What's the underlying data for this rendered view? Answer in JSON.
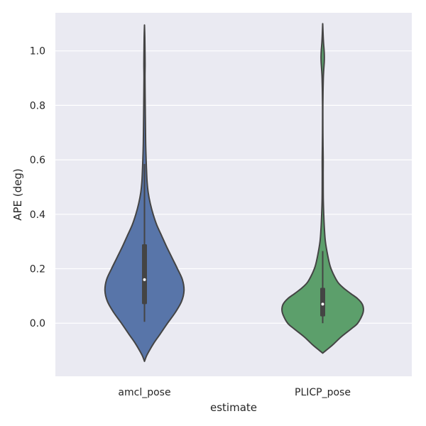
{
  "chart_data": {
    "type": "violin",
    "xlabel": "estimate",
    "ylabel": "APE (deg)",
    "categories": [
      "amcl_pose",
      "PLICP_pose"
    ],
    "ylim": [
      -0.195,
      1.14
    ],
    "yticks": [
      0.0,
      0.2,
      0.4,
      0.6,
      0.8,
      1.0
    ],
    "ytick_labels": [
      "0.0",
      "0.2",
      "0.4",
      "0.6",
      "0.8",
      "1.0"
    ],
    "grid": true,
    "colors": {
      "background": "#eaeaf2",
      "grid": "#ffffff",
      "outline": "#444444",
      "amcl_pose": "#5875a9",
      "PLICP_pose": "#5c9f6b"
    },
    "series": [
      {
        "category": "amcl_pose",
        "density": [
          [
            -0.14,
            0.0
          ],
          [
            -0.12,
            0.05
          ],
          [
            -0.1,
            0.12
          ],
          [
            -0.07,
            0.24
          ],
          [
            -0.04,
            0.38
          ],
          [
            0.0,
            0.56
          ],
          [
            0.04,
            0.75
          ],
          [
            0.08,
            0.9
          ],
          [
            0.12,
            0.96
          ],
          [
            0.16,
            0.92
          ],
          [
            0.2,
            0.8
          ],
          [
            0.24,
            0.67
          ],
          [
            0.28,
            0.54
          ],
          [
            0.32,
            0.42
          ],
          [
            0.36,
            0.3
          ],
          [
            0.4,
            0.21
          ],
          [
            0.44,
            0.14
          ],
          [
            0.48,
            0.09
          ],
          [
            0.52,
            0.063
          ],
          [
            0.56,
            0.05
          ],
          [
            0.6,
            0.04
          ],
          [
            0.65,
            0.03
          ],
          [
            0.7,
            0.025
          ],
          [
            0.8,
            0.018
          ],
          [
            0.9,
            0.012
          ],
          [
            0.95,
            0.015
          ],
          [
            1.0,
            0.012
          ],
          [
            1.05,
            0.008
          ],
          [
            1.095,
            0.0
          ]
        ],
        "whisker": [
          0.005,
          0.585
        ],
        "quartiles": [
          0.07,
          0.29
        ],
        "median": 0.16
      },
      {
        "category": "PLICP_pose",
        "density": [
          [
            -0.11,
            0.0
          ],
          [
            -0.1,
            0.08
          ],
          [
            -0.08,
            0.24
          ],
          [
            -0.05,
            0.45
          ],
          [
            -0.02,
            0.7
          ],
          [
            0.0,
            0.85
          ],
          [
            0.03,
            0.96
          ],
          [
            0.05,
            0.99
          ],
          [
            0.07,
            0.96
          ],
          [
            0.09,
            0.85
          ],
          [
            0.11,
            0.67
          ],
          [
            0.13,
            0.5
          ],
          [
            0.15,
            0.37
          ],
          [
            0.18,
            0.26
          ],
          [
            0.21,
            0.18
          ],
          [
            0.25,
            0.12
          ],
          [
            0.3,
            0.065
          ],
          [
            0.35,
            0.04
          ],
          [
            0.4,
            0.025
          ],
          [
            0.45,
            0.015
          ],
          [
            0.5,
            0.012
          ],
          [
            0.55,
            0.011
          ],
          [
            0.6,
            0.012
          ],
          [
            0.65,
            0.008
          ],
          [
            0.7,
            0.005
          ],
          [
            0.75,
            0.004
          ],
          [
            0.8,
            0.004
          ],
          [
            0.85,
            0.008
          ],
          [
            0.9,
            0.015
          ],
          [
            0.93,
            0.025
          ],
          [
            0.96,
            0.038
          ],
          [
            0.98,
            0.04
          ],
          [
            1.0,
            0.035
          ],
          [
            1.03,
            0.02
          ],
          [
            1.06,
            0.01
          ],
          [
            1.1,
            0.0
          ]
        ],
        "whisker": [
          0.0,
          0.265
        ],
        "quartiles": [
          0.025,
          0.13
        ],
        "median": 0.07
      }
    ]
  }
}
